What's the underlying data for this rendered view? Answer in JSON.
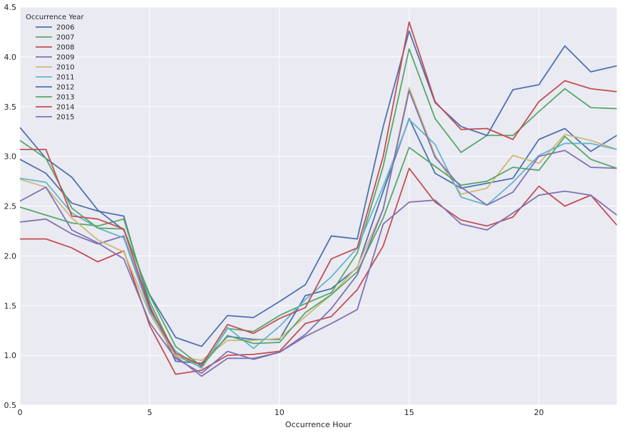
{
  "chart_data": {
    "type": "line",
    "title": "",
    "xlabel": "Occurrence Hour",
    "ylabel": "",
    "xlim": [
      0,
      23
    ],
    "ylim": [
      0.5,
      4.5
    ],
    "xticks": [
      "0",
      "5",
      "10",
      "15",
      "20"
    ],
    "yticks": [
      "0.5",
      "1.0",
      "1.5",
      "2.0",
      "2.5",
      "3.0",
      "3.5",
      "4.0",
      "4.5"
    ],
    "grid": true,
    "background": "#eaeaf2",
    "legend": {
      "title": "Occurrence Year",
      "placement": "top-left"
    },
    "x": [
      0,
      1,
      2,
      3,
      4,
      5,
      6,
      7,
      8,
      9,
      10,
      11,
      12,
      13,
      14,
      15,
      16,
      17,
      18,
      19,
      20,
      21,
      22,
      23
    ],
    "series": [
      {
        "name": "2006",
        "color": "#4c72b0",
        "values": [
          2.97,
          2.83,
          2.53,
          2.45,
          2.4,
          1.5,
          0.94,
          0.92,
          1.19,
          1.16,
          1.16,
          1.6,
          1.67,
          1.88,
          2.65,
          3.38,
          2.83,
          2.68,
          2.73,
          2.78,
          3.17,
          3.28,
          3.05,
          3.21
        ]
      },
      {
        "name": "2007",
        "color": "#55a868",
        "values": [
          2.49,
          2.41,
          2.33,
          2.3,
          2.37,
          1.54,
          1.0,
          0.88,
          1.27,
          1.24,
          1.4,
          1.52,
          1.63,
          2.03,
          2.9,
          4.08,
          3.38,
          3.04,
          3.21,
          3.21,
          3.45,
          3.68,
          3.49,
          3.48
        ]
      },
      {
        "name": "2008",
        "color": "#c44e52",
        "values": [
          2.17,
          2.17,
          2.08,
          1.94,
          2.05,
          1.3,
          0.81,
          0.85,
          1.0,
          1.01,
          1.04,
          1.32,
          1.39,
          1.66,
          2.1,
          2.88,
          2.54,
          2.36,
          2.3,
          2.39,
          2.7,
          2.5,
          2.61,
          2.31
        ]
      },
      {
        "name": "2009",
        "color": "#8172b2",
        "values": [
          2.34,
          2.37,
          2.22,
          2.12,
          2.2,
          1.46,
          0.99,
          0.79,
          0.97,
          0.97,
          1.03,
          1.19,
          1.32,
          1.46,
          2.32,
          2.54,
          2.56,
          2.32,
          2.26,
          2.43,
          2.61,
          2.65,
          2.61,
          2.41
        ]
      },
      {
        "name": "2010",
        "color": "#ccb974",
        "values": [
          2.77,
          2.69,
          2.38,
          2.16,
          2.04,
          1.42,
          0.99,
          0.95,
          1.15,
          1.15,
          1.17,
          1.39,
          1.61,
          1.89,
          2.47,
          3.69,
          3.01,
          2.62,
          2.68,
          3.01,
          2.93,
          3.22,
          3.16,
          3.07
        ]
      },
      {
        "name": "2011",
        "color": "#64b5cd",
        "values": [
          2.78,
          2.74,
          2.43,
          2.28,
          2.18,
          1.44,
          1.04,
          0.87,
          1.28,
          1.07,
          1.29,
          1.56,
          1.79,
          2.08,
          2.7,
          3.37,
          3.12,
          2.59,
          2.51,
          2.74,
          3.01,
          3.13,
          3.13,
          3.07
        ]
      },
      {
        "name": "2012",
        "color": "#4c72b0",
        "values": [
          3.29,
          2.98,
          2.79,
          2.46,
          2.26,
          1.61,
          1.18,
          1.09,
          1.4,
          1.38,
          1.54,
          1.71,
          2.2,
          2.17,
          3.3,
          4.26,
          3.54,
          3.3,
          3.21,
          3.67,
          3.72,
          4.11,
          3.85,
          3.91
        ]
      },
      {
        "name": "2013",
        "color": "#55a868",
        "values": [
          3.16,
          2.98,
          2.48,
          2.28,
          2.27,
          1.6,
          1.09,
          0.89,
          1.2,
          1.12,
          1.13,
          1.43,
          1.61,
          1.84,
          2.38,
          3.09,
          2.9,
          2.71,
          2.75,
          2.89,
          2.86,
          3.2,
          2.97,
          2.88
        ]
      },
      {
        "name": "2014",
        "color": "#c44e52",
        "values": [
          3.07,
          3.07,
          2.4,
          2.37,
          2.27,
          1.48,
          1.02,
          0.9,
          1.31,
          1.22,
          1.37,
          1.48,
          1.97,
          2.08,
          3.0,
          4.35,
          3.55,
          3.27,
          3.28,
          3.17,
          3.55,
          3.76,
          3.68,
          3.65
        ]
      },
      {
        "name": "2015",
        "color": "#8172b2",
        "values": [
          2.55,
          2.69,
          2.26,
          2.13,
          1.97,
          1.33,
          0.97,
          0.82,
          1.04,
          0.96,
          1.03,
          1.21,
          1.47,
          1.81,
          2.47,
          3.66,
          2.99,
          2.69,
          2.51,
          2.64,
          3.0,
          3.06,
          2.89,
          2.88
        ]
      }
    ]
  }
}
